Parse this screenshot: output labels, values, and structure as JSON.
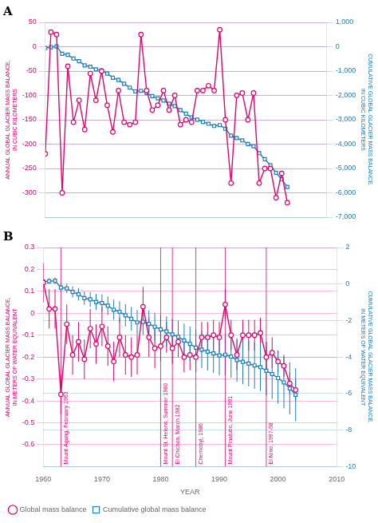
{
  "chart_data": [
    {
      "type": "line",
      "title": "A",
      "ylabel": "ANNUAL GLOBAL GLACIER MASS BALANCE,\nIN CUBIC KILOMETERS",
      "y2label": "CUMULATIVE GLOBAL GLACIER MASS BALANCE,\nIN CUBIC KILOMETERS",
      "x": [
        1960,
        1961,
        1962,
        1963,
        1964,
        1965,
        1966,
        1967,
        1968,
        1969,
        1970,
        1971,
        1972,
        1973,
        1974,
        1975,
        1976,
        1977,
        1978,
        1979,
        1980,
        1981,
        1982,
        1983,
        1984,
        1985,
        1986,
        1987,
        1988,
        1989,
        1990,
        1991,
        1992,
        1993,
        1994,
        1995,
        1996,
        1997,
        1998,
        1999,
        2000,
        2001,
        2002,
        2003
      ],
      "xlim": [
        1960,
        2010
      ],
      "xticks": [
        1960,
        1970,
        1980,
        1990,
        2000,
        2010
      ],
      "ylim": [
        -350,
        50
      ],
      "yticks": [
        -300,
        -250,
        -200,
        -150,
        -100,
        -50,
        0,
        50
      ],
      "y2lim": [
        -7000,
        1000
      ],
      "y2ticks": [
        {
          "value": -7000,
          "label": "-7,000"
        },
        {
          "value": -6000,
          "label": "-6,000"
        },
        {
          "value": -5000,
          "label": "-5,000"
        },
        {
          "value": -4000,
          "label": "-4,000"
        },
        {
          "value": -3000,
          "label": "-3,000"
        },
        {
          "value": -2000,
          "label": "-2,000"
        },
        {
          "value": -1000,
          "label": "-1,000"
        },
        0,
        {
          "value": 1000,
          "label": "1,000"
        }
      ],
      "grid": true,
      "tick_labels": "y",
      "series": [
        {
          "color": "#E8006A",
          "marker": "circle",
          "line_style": "solid",
          "values": [
            -220,
            30,
            25,
            -300,
            -40,
            -155,
            -110,
            -170,
            -55,
            -110,
            -50,
            -120,
            -175,
            -90,
            -155,
            -160,
            -155,
            25,
            -90,
            -130,
            -120,
            -90,
            -130,
            -100,
            -160,
            -150,
            -155,
            -90,
            -90,
            -80,
            -90,
            35,
            -150,
            -280,
            -100,
            -95,
            -150,
            -95,
            -280,
            -250,
            -250,
            -310,
            -260,
            -320
          ]
        },
        {
          "color": "#1A7EC2",
          "marker": "square",
          "line_style": "solid",
          "axis": "y2",
          "values": [
            -50,
            -20,
            10,
            -290,
            -330,
            -485,
            -595,
            -765,
            -820,
            -930,
            -980,
            -1100,
            -1275,
            -1365,
            -1520,
            -1680,
            -1835,
            -1810,
            -1900,
            -2030,
            -2120,
            -2210,
            -2340,
            -2440,
            -2600,
            -2750,
            -2905,
            -2995,
            -3085,
            -3165,
            -3255,
            -3220,
            -3370,
            -3650,
            -3750,
            -3845,
            -3995,
            -4090,
            -4370,
            -4620,
            -4870,
            -5180,
            -5440,
            -5760
          ]
        }
      ]
    },
    {
      "type": "line",
      "title": "B",
      "xlabel": "YEAR",
      "ylabel": "ANNUAL GLOBAL GLACIER MASS BALANCE,\nIN METERS OF WATER EQUIVALENT",
      "y2label": "CUMULATIVE GLOBAL GLACIER MASS BALANCE,\nIN METERS OF WATER EQUIVALENT",
      "x": [
        1960,
        1961,
        1962,
        1963,
        1964,
        1965,
        1966,
        1967,
        1968,
        1969,
        1970,
        1971,
        1972,
        1973,
        1974,
        1975,
        1976,
        1977,
        1978,
        1979,
        1980,
        1981,
        1982,
        1983,
        1984,
        1985,
        1986,
        1987,
        1988,
        1989,
        1990,
        1991,
        1992,
        1993,
        1994,
        1995,
        1996,
        1997,
        1998,
        1999,
        2000,
        2001,
        2002,
        2003
      ],
      "xlim": [
        1960,
        2010
      ],
      "xticks": [
        1960,
        1970,
        1980,
        1990,
        2000,
        2010
      ],
      "ylim": [
        -0.7,
        0.3
      ],
      "yticks": [
        -0.6,
        -0.5,
        -0.4,
        -0.3,
        -0.2,
        -0.1,
        0,
        0.1,
        0.2,
        0.3
      ],
      "y2lim": [
        -10,
        2
      ],
      "y2ticks": [
        -10,
        -8,
        -6,
        -4,
        -2,
        0,
        2
      ],
      "grid": true,
      "legend": "lower left",
      "series": [
        {
          "name": "Global mass balance",
          "color": "#E8006A",
          "marker": "circle",
          "line_style": "solid",
          "values": [
            0.14,
            0.02,
            0.02,
            -0.37,
            -0.05,
            -0.19,
            -0.13,
            -0.21,
            -0.07,
            -0.14,
            -0.06,
            -0.15,
            -0.22,
            -0.11,
            -0.19,
            -0.2,
            -0.19,
            0.03,
            -0.11,
            -0.16,
            -0.15,
            -0.11,
            -0.16,
            -0.13,
            -0.2,
            -0.19,
            -0.2,
            -0.11,
            -0.11,
            -0.1,
            -0.11,
            0.04,
            -0.1,
            -0.19,
            -0.1,
            -0.1,
            -0.1,
            -0.09,
            -0.2,
            -0.18,
            -0.22,
            -0.24,
            -0.32,
            -0.35
          ],
          "errors": [
            0.09,
            0.09,
            0.09,
            0.09,
            0.09,
            0.09,
            0.09,
            0.09,
            0.09,
            0.09,
            0.09,
            0.09,
            0.09,
            0.09,
            0.09,
            0.09,
            0.09,
            0.09,
            0.09,
            0.09,
            0.07,
            0.07,
            0.07,
            0.07,
            0.07,
            0.07,
            0.07,
            0.07,
            0.07,
            0.07,
            0.07,
            0.07,
            0.07,
            0.07,
            0.07,
            0.07,
            0.07,
            0.07,
            0.07,
            0.07,
            0.05,
            0.05,
            0.05,
            0.05
          ]
        },
        {
          "name": "Cumulative global mass balance",
          "color": "#1A7EC2",
          "marker": "square",
          "line_style": "solid",
          "axis": "y2",
          "values": [
            0.14,
            0.16,
            0.18,
            -0.19,
            -0.24,
            -0.43,
            -0.56,
            -0.77,
            -0.84,
            -0.98,
            -1.04,
            -1.19,
            -1.41,
            -1.52,
            -1.71,
            -1.91,
            -2.1,
            -2.07,
            -2.18,
            -2.34,
            -2.49,
            -2.6,
            -2.76,
            -2.89,
            -3.09,
            -3.28,
            -3.48,
            -3.59,
            -3.7,
            -3.8,
            -3.91,
            -3.87,
            -3.97,
            -4.16,
            -4.26,
            -4.36,
            -4.46,
            -4.55,
            -4.75,
            -4.93,
            -5.15,
            -5.39,
            -5.71,
            -6.06
          ],
          "errors": [
            0.12,
            0.15,
            0.18,
            0.22,
            0.26,
            0.3,
            0.34,
            0.37,
            0.41,
            0.44,
            0.48,
            0.51,
            0.55,
            0.58,
            0.61,
            0.65,
            0.68,
            0.71,
            0.74,
            0.77,
            0.8,
            0.83,
            0.86,
            0.89,
            0.92,
            0.95,
            0.98,
            1.01,
            1.04,
            1.07,
            1.1,
            1.13,
            1.16,
            1.19,
            1.22,
            1.25,
            1.28,
            1.31,
            1.34,
            1.37,
            1.39,
            1.41,
            1.43,
            1.45
          ]
        }
      ],
      "annotations": [
        {
          "x": 1963,
          "text": "Mount Agung, February 1963"
        },
        {
          "x": 1980,
          "text": "Mount St. Helens, Summer 1980"
        },
        {
          "x": 1982,
          "text": "El Chichon, March 1982"
        },
        {
          "x": 1986,
          "text": "Chernobyl, 1986"
        },
        {
          "x": 1991,
          "text": "Mount Pinatubo, June 1991"
        },
        {
          "x": 1998,
          "text": "El Nino, 1997-98"
        }
      ]
    }
  ]
}
